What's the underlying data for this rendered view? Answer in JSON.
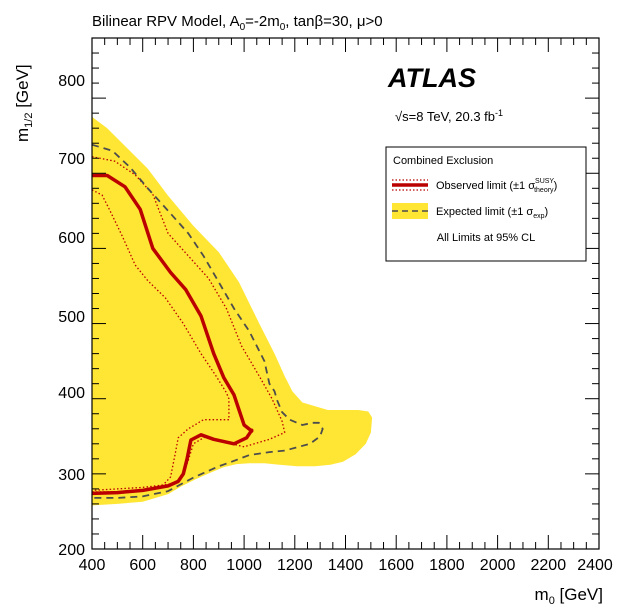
{
  "chart_data": {
    "type": "line",
    "title": "Bilinear RPV Model, A",
    "title_sub1": "0",
    "title_mid": "=-2m",
    "title_sub2": "0",
    "title_end": ", tanβ=30, μ>0",
    "xlabel_main": "m",
    "xlabel_sub": "0",
    "xlabel_unit": " [GeV]",
    "ylabel_main": "m",
    "ylabel_sub": "1/2",
    "ylabel_unit": " [GeV]",
    "xlim": [
      400,
      2400
    ],
    "ylim": [
      200,
      880
    ],
    "xticks": [
      "400",
      "600",
      "800",
      "1000",
      "1200",
      "1400",
      "1600",
      "1800",
      "2000",
      "2200",
      "2400"
    ],
    "yticks": [
      "200",
      "300",
      "400",
      "500",
      "600",
      "700",
      "800"
    ],
    "experiment": "ATLAS",
    "energy_label": "s=8 TeV, 20.3 fb",
    "energy_sup": "-1",
    "sqrt_symbol": "√",
    "legend": {
      "placement": "top-right",
      "header": "Combined Exclusion",
      "observed_label": "Observed limit (±1 σ",
      "observed_sup": "SUSY",
      "observed_sub": "theory",
      "observed_close": ")",
      "expected_label": "Expected limit (±1 σ",
      "expected_sub": "exp",
      "expected_close": ")",
      "footer": "All Limits at 95% CL"
    },
    "colors": {
      "observed": "#bb0000",
      "expected": "#4d4d4d",
      "band": "#ffe534"
    },
    "series": [
      {
        "name": "Observed limit",
        "style": "solid",
        "x": [
          400,
          460,
          530,
          590,
          640,
          710,
          770,
          830,
          880,
          920,
          960,
          1000,
          1030,
          1030,
          1010,
          960,
          880,
          830,
          790,
          775,
          760,
          740,
          700,
          600,
          500,
          400
        ],
        "y": [
          697,
          697,
          682,
          652,
          600,
          568,
          545,
          510,
          460,
          428,
          405,
          365,
          357,
          358,
          348,
          340,
          346,
          352,
          345,
          320,
          300,
          290,
          284,
          278,
          275,
          274
        ]
      },
      {
        "name": "Observed +1σ theory",
        "style": "dotted",
        "x": [
          400,
          490,
          570,
          640,
          700,
          780,
          860,
          930,
          990,
          1060,
          1110,
          1150,
          1160,
          1100,
          1000,
          900,
          850,
          800,
          780,
          760,
          740,
          700,
          600,
          500,
          400
        ],
        "y": [
          722,
          716,
          698,
          672,
          620,
          590,
          560,
          520,
          470,
          430,
          400,
          370,
          355,
          346,
          336,
          344,
          350,
          340,
          318,
          300,
          290,
          286,
          282,
          280,
          278
        ]
      },
      {
        "name": "Observed -1σ theory",
        "style": "dotted",
        "x": [
          400,
          440,
          470,
          520,
          570,
          620,
          690,
          760,
          830,
          890,
          930,
          940,
          940,
          900,
          840,
          780,
          740,
          730,
          710,
          680,
          600,
          500,
          400
        ],
        "y": [
          678,
          671,
          651,
          616,
          578,
          557,
          534,
          500,
          460,
          430,
          408,
          400,
          372,
          372,
          372,
          360,
          348,
          330,
          296,
          285,
          278,
          276,
          276
        ]
      },
      {
        "name": "Expected limit",
        "style": "dashed",
        "x": [
          400,
          480,
          550,
          620,
          700,
          780,
          840,
          900,
          960,
          1020,
          1080,
          1100,
          1120,
          1130,
          1150,
          1180,
          1230,
          1270,
          1295,
          1310,
          1300,
          1260,
          1160,
          1100,
          1060,
          1020,
          950,
          900,
          800,
          700,
          600,
          500,
          400
        ],
        "y": [
          738,
          730,
          708,
          680,
          650,
          620,
          590,
          555,
          520,
          490,
          450,
          420,
          410,
          398,
          382,
          372,
          365,
          368,
          368,
          360,
          350,
          340,
          331,
          329,
          327,
          325,
          316,
          310,
          295,
          277,
          270,
          268,
          268
        ]
      }
    ],
    "band": {
      "name": "Expected ±1σ exp",
      "upper": {
        "x": [
          400,
          460,
          540,
          620,
          700,
          800,
          900,
          980,
          1060,
          1120,
          1160,
          1190,
          1230,
          1280,
          1330,
          1390,
          1450,
          1490,
          1505,
          1500,
          1480
        ],
        "y": [
          775,
          760,
          733,
          706,
          670,
          630,
          595,
          555,
          500,
          460,
          430,
          410,
          395,
          390,
          385,
          385,
          385,
          383,
          375,
          355,
          340
        ]
      },
      "lower": {
        "x": [
          1480,
          1440,
          1390,
          1340,
          1280,
          1210,
          1140,
          1080,
          1020,
          970,
          920,
          870,
          810,
          750,
          700,
          600,
          500,
          400
        ],
        "y": [
          340,
          326,
          316,
          312,
          310,
          310,
          312,
          314,
          314,
          313,
          309,
          302,
          293,
          283,
          273,
          263,
          260,
          258
        ]
      }
    }
  }
}
